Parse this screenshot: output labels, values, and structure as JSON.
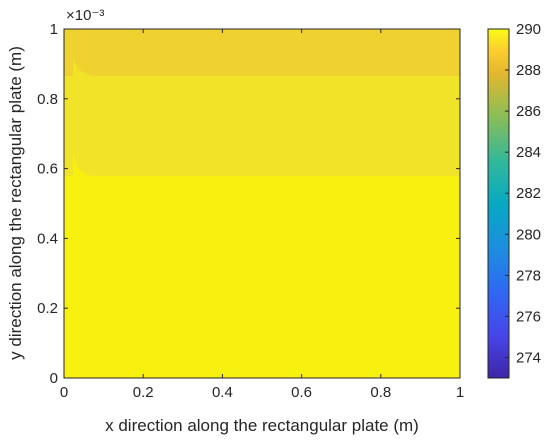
{
  "chart_data": {
    "type": "heatmap",
    "title": "",
    "xlabel": "x direction along the rectangular plate (m)",
    "ylabel": "y direction along the rectangular plate (m)",
    "xlim": [
      0,
      1
    ],
    "ylim": [
      0,
      1
    ],
    "x_ticks": [
      "0",
      "0.2",
      "0.4",
      "0.6",
      "0.8",
      "1"
    ],
    "y_ticks": [
      "0",
      "0.2",
      "0.4",
      "0.6",
      "0.8",
      "1"
    ],
    "y_exponent": "×10⁻³",
    "grid": false,
    "colormap": "parula",
    "colorbar": {
      "range": [
        273,
        290
      ],
      "ticks": [
        "274",
        "276",
        "278",
        "280",
        "282",
        "284",
        "286",
        "288",
        "290"
      ]
    },
    "bands": [
      {
        "y_from": 0.0,
        "y_to": 0.58,
        "value": 290
      },
      {
        "y_from": 0.58,
        "y_to": 0.87,
        "value": 289
      },
      {
        "y_from": 0.87,
        "y_to": 1.0,
        "value": 287.5
      }
    ]
  }
}
